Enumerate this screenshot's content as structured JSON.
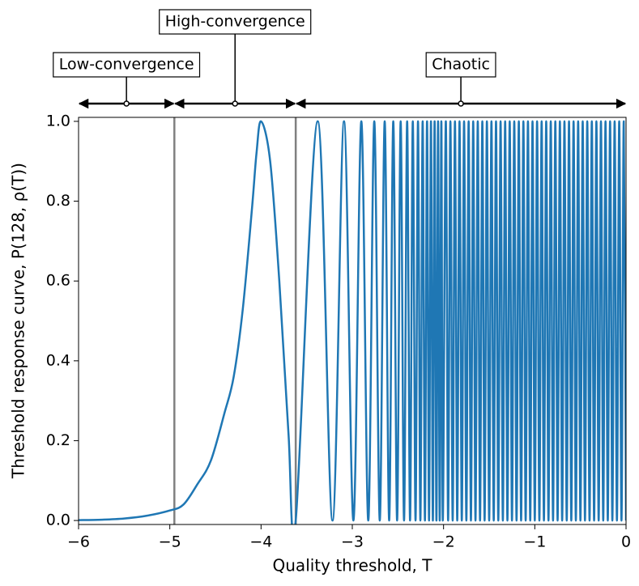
{
  "chart_data": {
    "type": "line",
    "xlabel": "Quality threshold, T",
    "ylabel": "Threshold response curve, P(128, ρ(T))",
    "xlim": [
      -6,
      0
    ],
    "ylim": [
      -0.01,
      1.01
    ],
    "xticks": [
      {
        "value": -6,
        "label": "−6"
      },
      {
        "value": -5,
        "label": "−5"
      },
      {
        "value": -4,
        "label": "−4"
      },
      {
        "value": -3,
        "label": "−3"
      },
      {
        "value": -2,
        "label": "−2"
      },
      {
        "value": -1,
        "label": "−1"
      },
      0
    ],
    "yticks": [
      {
        "value": 0,
        "label": "0.0"
      },
      0.2,
      0.4,
      0.6,
      0.8,
      {
        "value": 1,
        "label": "1.0"
      }
    ],
    "divider_color": "#808080",
    "regions": [
      {
        "label": "Low-convergence",
        "start": -6,
        "end": -4.95
      },
      {
        "label": "High-convergence",
        "start": -4.95,
        "end": -3.62
      },
      {
        "label": "Chaotic",
        "start": -3.62,
        "end": 0
      }
    ],
    "series": [
      {
        "color": "#1f77b4",
        "x": [
          -6,
          -5.75,
          -5.5,
          -5.25,
          -5.0,
          -4.85,
          -4.7,
          -4.55,
          -4.4,
          -4.3,
          -4.2,
          -4.1,
          -4.05,
          -4.0,
          -3.9,
          -3.8,
          -3.7,
          -3.62,
          -3.379,
          -3.217,
          -3.091,
          -2.988,
          -2.901,
          -2.825,
          -2.759,
          -2.699,
          -2.645,
          -2.596,
          -2.551,
          -2.509,
          -2.47,
          -2.433,
          -2.399,
          -2.367,
          -2.337,
          -2.307,
          -2.28,
          -2.254,
          -2.229,
          -2.204,
          -2.181,
          -2.159,
          -2.138,
          -2.117,
          -2.098,
          -2.078,
          -2.06,
          -2.042,
          -2.024,
          -2.008,
          -1.975,
          -1.95,
          -1.925,
          -1.9,
          -1.875,
          -1.85,
          -1.825,
          -1.8,
          -1.775,
          -1.75,
          -1.725,
          -1.7,
          -1.675,
          -1.65,
          -1.625,
          -1.6,
          -1.575,
          -1.55,
          -1.525,
          -1.5,
          -1.475,
          -1.45,
          -1.425,
          -1.4,
          -1.375,
          -1.35,
          -1.325,
          -1.3,
          -1.275,
          -1.25,
          -1.225,
          -1.2,
          -1.175,
          -1.15,
          -1.125,
          -1.1,
          -1.075,
          -1.05,
          -1.025,
          -1,
          -0.975,
          -0.95,
          -0.925,
          -0.9,
          -0.875,
          -0.85,
          -0.825,
          -0.8,
          -0.775,
          -0.75,
          -0.725,
          -0.7,
          -0.675,
          -0.65,
          -0.625,
          -0.6,
          -0.575,
          -0.55,
          -0.525,
          -0.5,
          -0.475,
          -0.45,
          -0.425,
          -0.4,
          -0.375,
          -0.35,
          -0.325,
          -0.3,
          -0.275,
          -0.25,
          -0.225,
          -0.2,
          -0.175,
          -0.15,
          -0.125,
          -0.1,
          -0.075,
          -0.05,
          -0.025,
          0
        ],
        "values": [
          0.001,
          0.002,
          0.005,
          0.012,
          0.025,
          0.04,
          0.09,
          0.15,
          0.27,
          0.36,
          0.53,
          0.78,
          0.92,
          1.0,
          0.9,
          0.6,
          0.22,
          0,
          1,
          0,
          1,
          0,
          1,
          0,
          1,
          0,
          1,
          0,
          1,
          0,
          1,
          0,
          1,
          0,
          1,
          0,
          1,
          0,
          1,
          0,
          1,
          0,
          1,
          0,
          1,
          0,
          1,
          0,
          1,
          0,
          1,
          0,
          1,
          0,
          1,
          0,
          1,
          0,
          1,
          0,
          1,
          0,
          1,
          0,
          1,
          0,
          1,
          0,
          1,
          0,
          1,
          0,
          1,
          0,
          1,
          0,
          1,
          0,
          1,
          0,
          1,
          0,
          1,
          0,
          1,
          0,
          1,
          0,
          1,
          0,
          1,
          0,
          1,
          0,
          1,
          0,
          1,
          0,
          1,
          0,
          1,
          0,
          1,
          0,
          1,
          0,
          1,
          0,
          1,
          0,
          1,
          0,
          1,
          0,
          1,
          0,
          1,
          0,
          1,
          0,
          1,
          0,
          1,
          0,
          1,
          0,
          1,
          0,
          1,
          0
        ]
      }
    ]
  }
}
